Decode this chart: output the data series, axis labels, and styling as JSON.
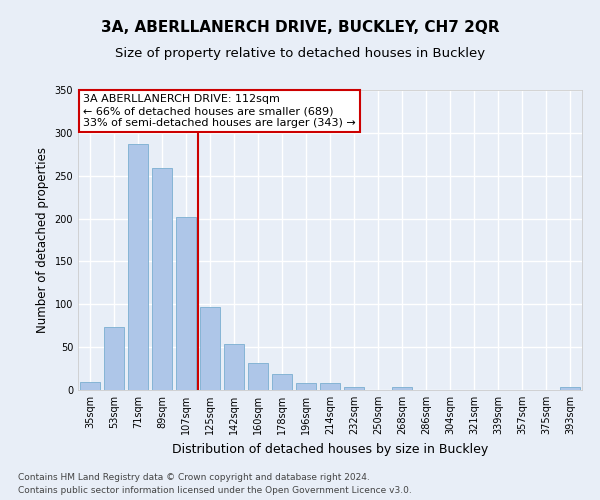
{
  "title": "3A, ABERLLANERCH DRIVE, BUCKLEY, CH7 2QR",
  "subtitle": "Size of property relative to detached houses in Buckley",
  "xlabel": "Distribution of detached houses by size in Buckley",
  "ylabel": "Number of detached properties",
  "categories": [
    "35sqm",
    "53sqm",
    "71sqm",
    "89sqm",
    "107sqm",
    "125sqm",
    "142sqm",
    "160sqm",
    "178sqm",
    "196sqm",
    "214sqm",
    "232sqm",
    "250sqm",
    "268sqm",
    "286sqm",
    "304sqm",
    "321sqm",
    "339sqm",
    "357sqm",
    "375sqm",
    "393sqm"
  ],
  "values": [
    9,
    73,
    287,
    259,
    202,
    97,
    54,
    32,
    19,
    8,
    8,
    4,
    0,
    4,
    0,
    0,
    0,
    0,
    0,
    0,
    3
  ],
  "bar_color": "#aec6e8",
  "bar_edge_color": "#7aaed0",
  "vline_x": 4.5,
  "vline_color": "#cc0000",
  "annotation_text": "3A ABERLLANERCH DRIVE: 112sqm\n← 66% of detached houses are smaller (689)\n33% of semi-detached houses are larger (343) →",
  "annotation_box_color": "#ffffff",
  "annotation_box_edge_color": "#cc0000",
  "ylim": [
    0,
    350
  ],
  "yticks": [
    0,
    50,
    100,
    150,
    200,
    250,
    300,
    350
  ],
  "bg_color": "#e8eef7",
  "grid_color": "#ffffff",
  "footer_line1": "Contains HM Land Registry data © Crown copyright and database right 2024.",
  "footer_line2": "Contains public sector information licensed under the Open Government Licence v3.0.",
  "title_fontsize": 11,
  "subtitle_fontsize": 9.5,
  "xlabel_fontsize": 9,
  "ylabel_fontsize": 8.5,
  "tick_fontsize": 7,
  "annotation_fontsize": 8,
  "footer_fontsize": 6.5
}
